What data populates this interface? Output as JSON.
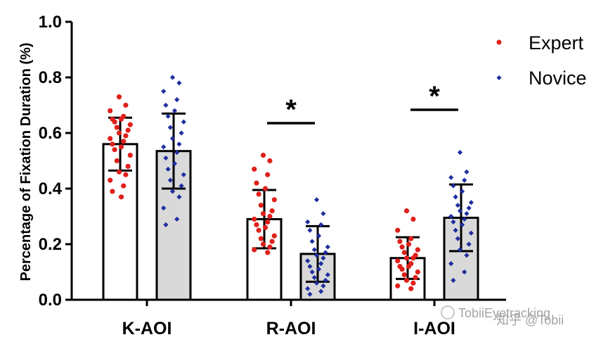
{
  "chart_data": {
    "type": "bar",
    "ylabel": "Percentage of Fixation Duration (%)",
    "xlabel": "",
    "ylim": [
      0,
      1.0
    ],
    "yticks": [
      "0.0",
      "0.2",
      "0.4",
      "0.6",
      "0.8",
      "1.0"
    ],
    "categories": [
      "K-AOI",
      "R-AOI",
      "I-AOI"
    ],
    "series": [
      {
        "name": "Expert",
        "bar_color": "#ffffff",
        "point_color": "#e0201b",
        "marker": "circle",
        "values": [
          0.56,
          0.29,
          0.15
        ],
        "sd": [
          0.095,
          0.105,
          0.075
        ],
        "points": [
          [
            0.73,
            0.7,
            0.68,
            0.66,
            0.65,
            0.65,
            0.64,
            0.63,
            0.62,
            0.61,
            0.6,
            0.59,
            0.58,
            0.57,
            0.56,
            0.55,
            0.54,
            0.52,
            0.5,
            0.48,
            0.46,
            0.45,
            0.43,
            0.41,
            0.39,
            0.37
          ],
          [
            0.52,
            0.5,
            0.47,
            0.45,
            0.42,
            0.4,
            0.38,
            0.36,
            0.34,
            0.32,
            0.31,
            0.3,
            0.29,
            0.28,
            0.27,
            0.26,
            0.25,
            0.23,
            0.22,
            0.21,
            0.2,
            0.19,
            0.18,
            0.17
          ],
          [
            0.32,
            0.29,
            0.25,
            0.22,
            0.21,
            0.2,
            0.19,
            0.18,
            0.17,
            0.16,
            0.15,
            0.15,
            0.14,
            0.13,
            0.12,
            0.12,
            0.11,
            0.1,
            0.09,
            0.08,
            0.07,
            0.06,
            0.05,
            0.04
          ]
        ]
      },
      {
        "name": "Novice",
        "bar_color": "#d9d9d9",
        "point_color": "#1f2f9e",
        "marker": "diamond",
        "values": [
          0.535,
          0.165,
          0.295
        ],
        "sd": [
          0.135,
          0.1,
          0.12
        ],
        "points": [
          [
            0.8,
            0.78,
            0.75,
            0.72,
            0.7,
            0.68,
            0.66,
            0.64,
            0.62,
            0.6,
            0.58,
            0.56,
            0.55,
            0.53,
            0.51,
            0.49,
            0.47,
            0.45,
            0.43,
            0.41,
            0.39,
            0.37,
            0.33,
            0.29,
            0.27
          ],
          [
            0.36,
            0.31,
            0.28,
            0.27,
            0.25,
            0.23,
            0.21,
            0.19,
            0.18,
            0.17,
            0.16,
            0.15,
            0.14,
            0.13,
            0.12,
            0.11,
            0.1,
            0.09,
            0.08,
            0.07,
            0.06,
            0.05,
            0.04,
            0.03,
            0.02
          ],
          [
            0.53,
            0.46,
            0.44,
            0.43,
            0.41,
            0.39,
            0.37,
            0.35,
            0.34,
            0.33,
            0.32,
            0.31,
            0.3,
            0.29,
            0.28,
            0.27,
            0.25,
            0.24,
            0.22,
            0.2,
            0.18,
            0.16,
            0.13,
            0.1,
            0.07
          ]
        ]
      }
    ],
    "significance": [
      {
        "category": "R-AOI",
        "label": "*"
      },
      {
        "category": "I-AOI",
        "label": "*"
      }
    ],
    "legend": {
      "position": "top-right",
      "entries": [
        "Expert",
        "Novice"
      ]
    },
    "grid": false
  },
  "watermark": "知乎 @Tobii",
  "watermark_brand": "TobiiEyetracking"
}
